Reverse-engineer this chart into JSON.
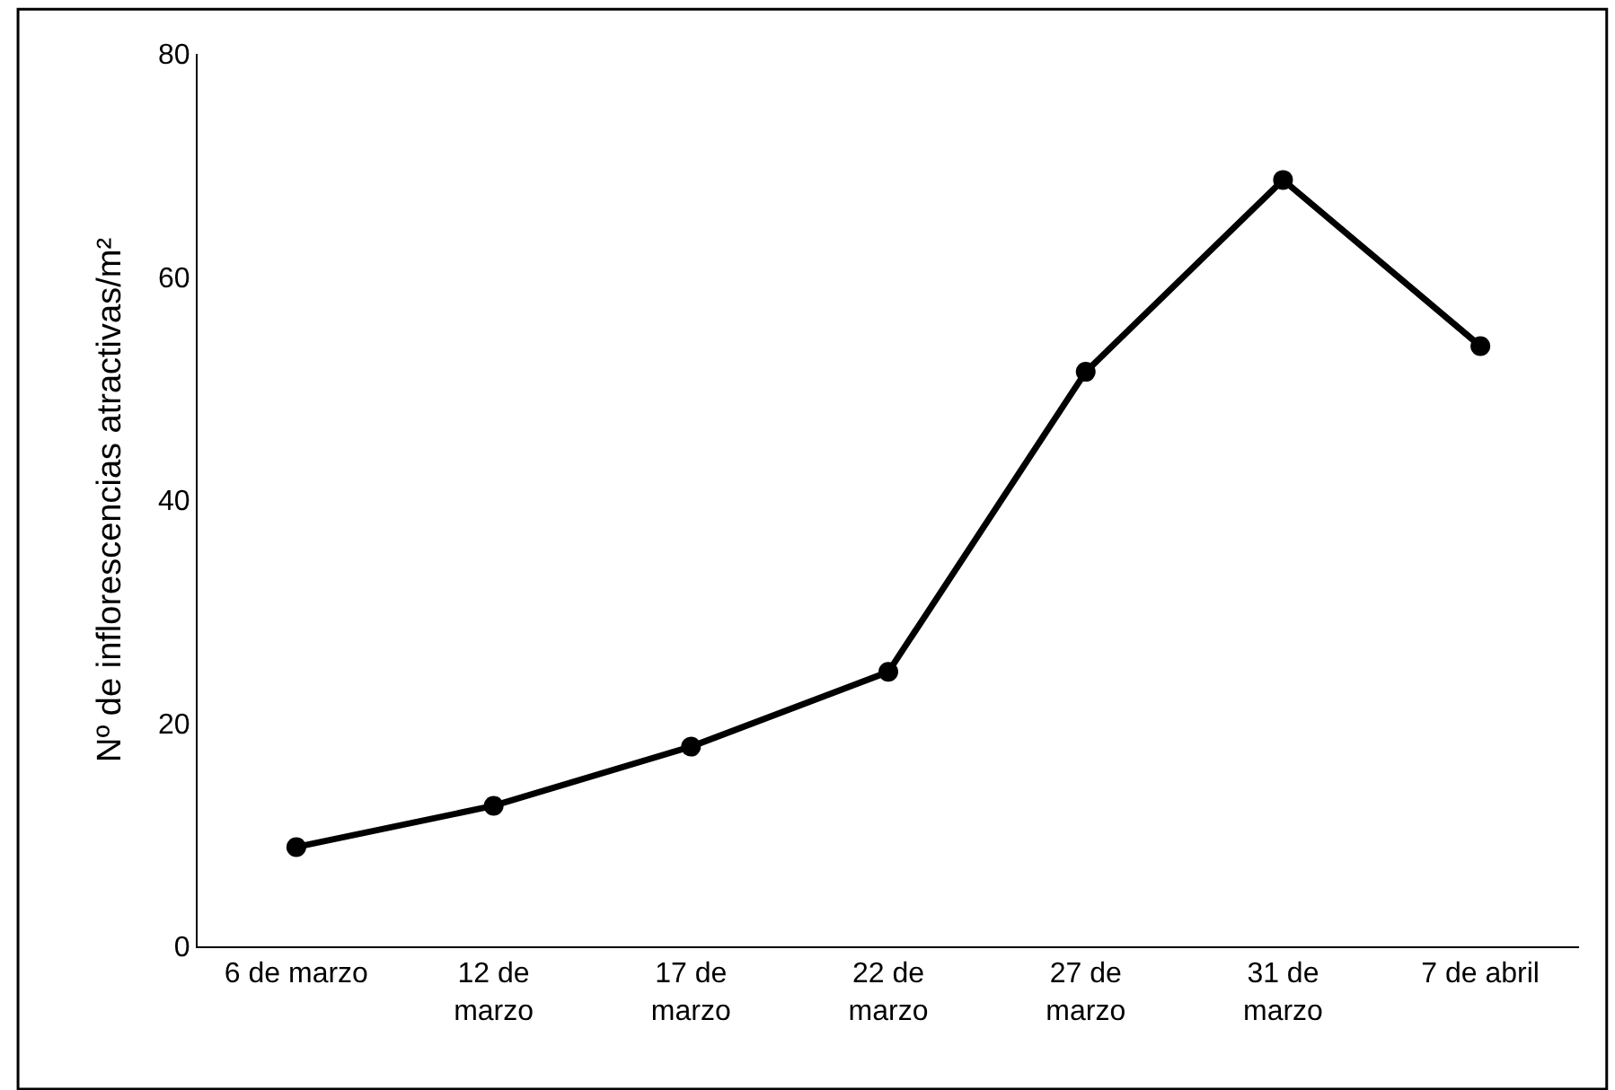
{
  "chart_data": {
    "type": "line",
    "ylabel": "Nº de inflorescencias atractivas/m²",
    "categories": [
      "6 de marzo",
      "12 de marzo",
      "17 de marzo",
      "22 de marzo",
      "27 de marzo",
      "31 de marzo",
      "7 de abril"
    ],
    "series": [
      {
        "color": "#000000",
        "values": [
          8.9,
          12.6,
          17.9,
          24.6,
          51.5,
          68.7,
          53.8
        ]
      }
    ],
    "ylim": [
      0,
      80
    ],
    "yticks": [
      0,
      20,
      40,
      60,
      80
    ],
    "marker": "circle",
    "line_style": "solid"
  }
}
